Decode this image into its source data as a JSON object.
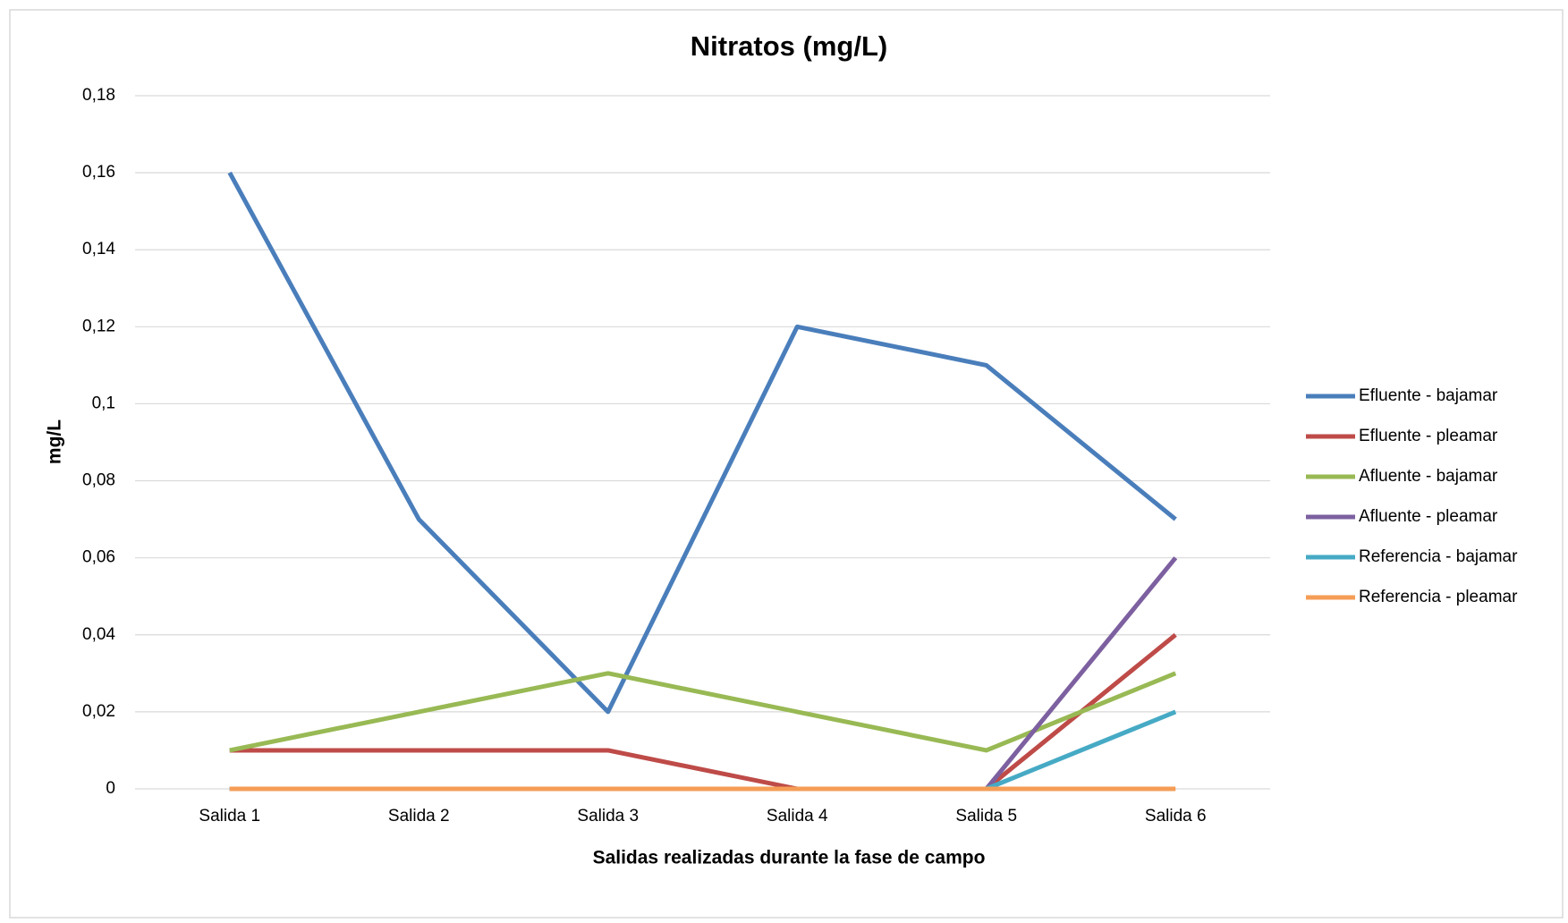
{
  "chart_data": {
    "type": "line",
    "title": "Nitratos (mg/L)",
    "x_label": "Salidas realizadas durante la fase de campo",
    "y_label": "mg/L",
    "categories": [
      "Salida 1",
      "Salida 2",
      "Salida 3",
      "Salida 4",
      "Salida 5",
      "Salida 6"
    ],
    "series": [
      {
        "name": "Efluente - bajamar",
        "color": "#4a7ebb",
        "values": [
          0.16,
          0.07,
          0.02,
          0.12,
          0.11,
          0.07
        ]
      },
      {
        "name": "Efluente - pleamar",
        "color": "#be4b48",
        "values": [
          0.01,
          0.01,
          0.01,
          0,
          0,
          0.04
        ]
      },
      {
        "name": "Afluente - bajamar",
        "color": "#98b954",
        "values": [
          0.01,
          0.02,
          0.03,
          0.02,
          0.01,
          0.03
        ]
      },
      {
        "name": "Afluente - pleamar",
        "color": "#7d60a0",
        "values": [
          0,
          0,
          0,
          0,
          0,
          0.06
        ]
      },
      {
        "name": "Referencia - bajamar",
        "color": "#46aac5",
        "values": [
          0,
          0,
          0,
          0,
          0,
          0.02
        ]
      },
      {
        "name": "Referencia - pleamar",
        "color": "#f59d56",
        "values": [
          0,
          0,
          0,
          0,
          0,
          0
        ]
      }
    ],
    "ylim": [
      0,
      0.18
    ],
    "yticks": [
      0,
      {
        "value": 0.02,
        "label": "0,02"
      },
      {
        "value": 0.04,
        "label": "0,04"
      },
      {
        "value": 0.06,
        "label": "0,06"
      },
      {
        "value": 0.08,
        "label": "0,08"
      },
      {
        "value": 0.1,
        "label": "0,1"
      },
      {
        "value": 0.12,
        "label": "0,12"
      },
      {
        "value": 0.14,
        "label": "0,14"
      },
      {
        "value": 0.16,
        "label": "0,16"
      },
      {
        "value": 0.18,
        "label": "0,18"
      }
    ],
    "grid": true,
    "legend": "right"
  }
}
